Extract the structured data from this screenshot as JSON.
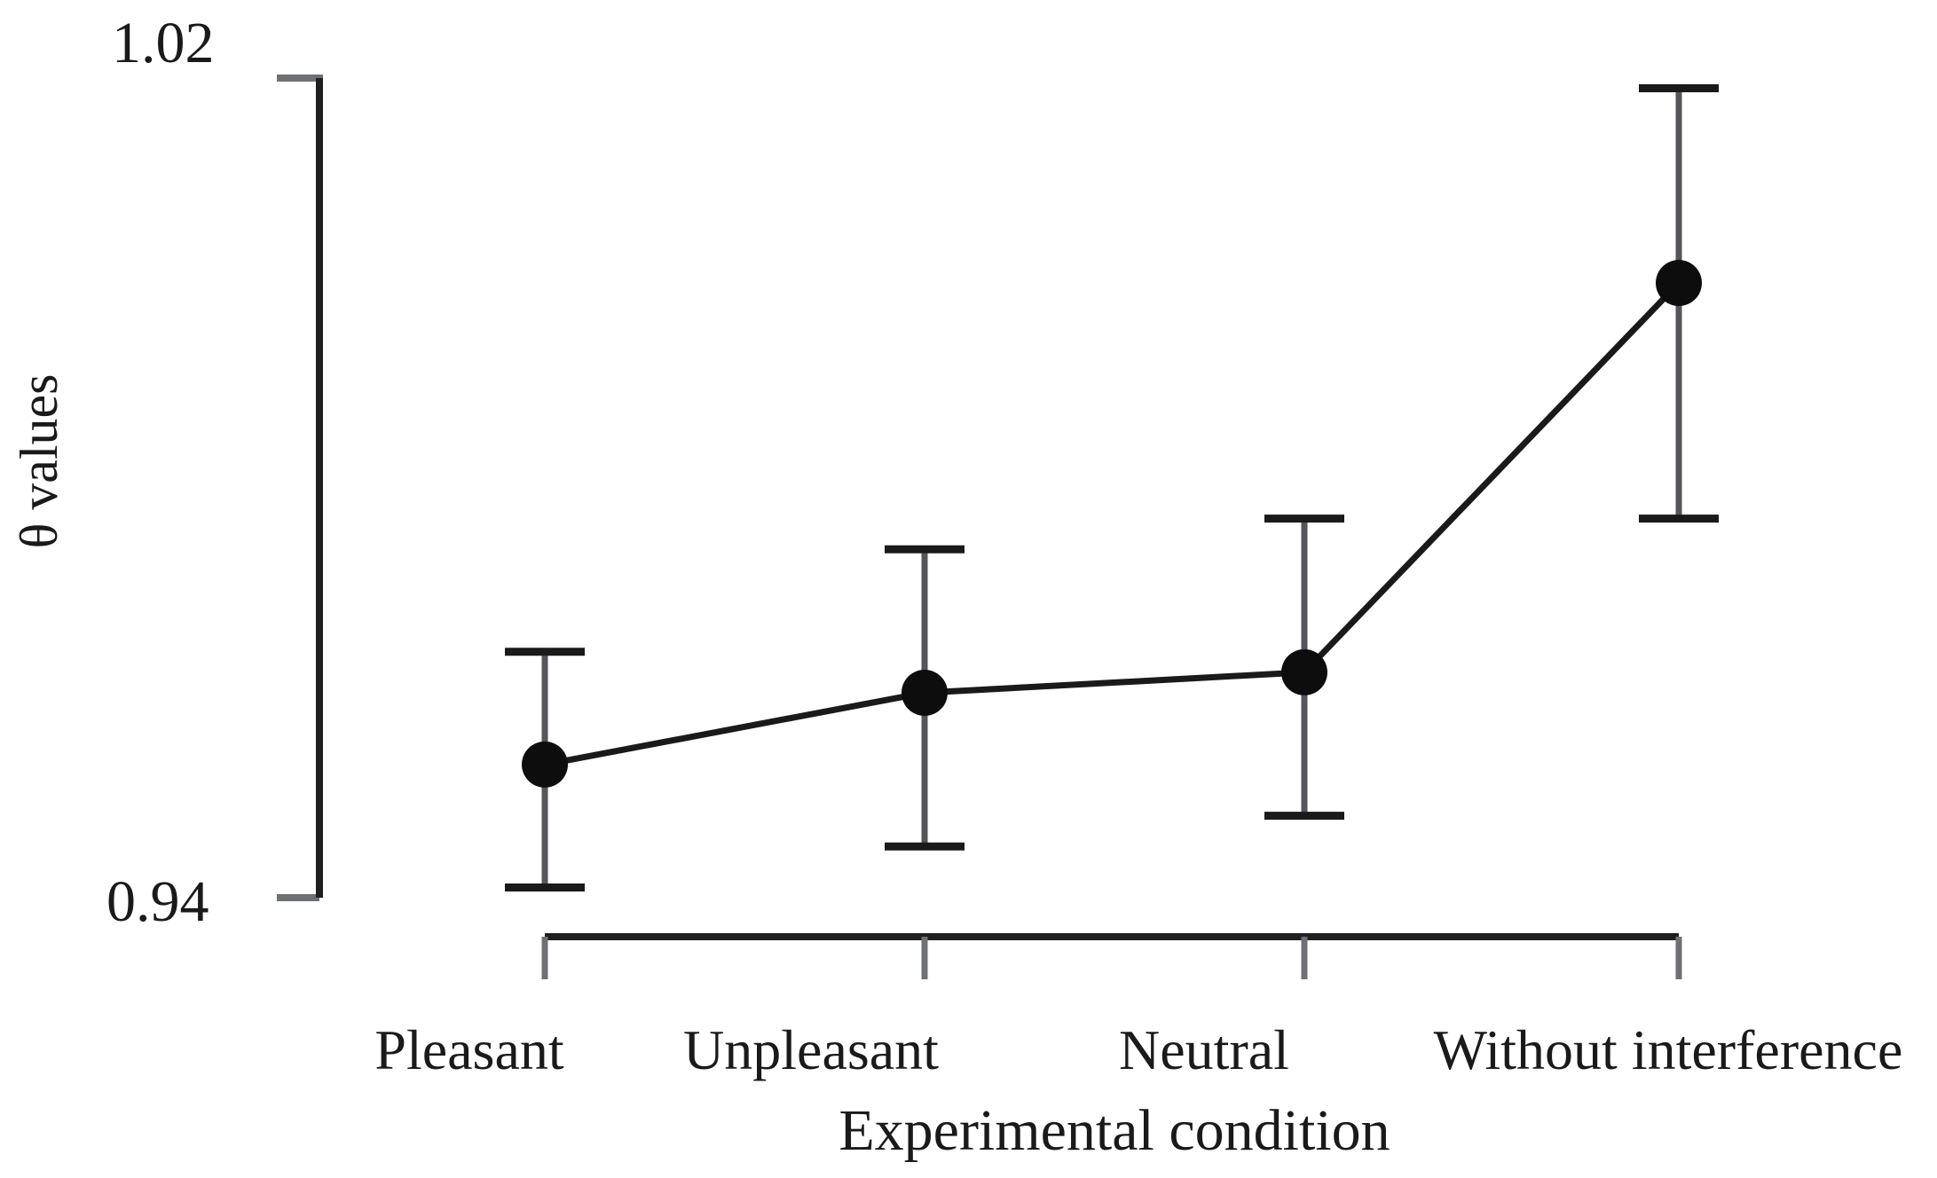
{
  "figure": {
    "background": "#ffffff",
    "y_axis": {
      "title": "θ values",
      "top_tick_label": "1.02",
      "bottom_tick_label": "0.94"
    },
    "x_axis": {
      "title": "Experimental condition"
    }
  },
  "chart_data": {
    "type": "line",
    "title": "",
    "xlabel": "Experimental condition",
    "ylabel": "θ values",
    "categories": [
      "Pleasant",
      "Unpleasant",
      "Neutral",
      "Without interference"
    ],
    "series": [
      {
        "name": "θ values",
        "values": [
          0.953,
          0.96,
          0.962,
          1.0
        ],
        "error_low": [
          0.941,
          0.945,
          0.948,
          0.977
        ],
        "error_high": [
          0.964,
          0.974,
          0.977,
          1.019
        ]
      }
    ],
    "ylim": [
      0.94,
      1.02
    ],
    "y_tick_values": [
      0.94,
      1.02
    ],
    "grid": false,
    "legend_position": "none",
    "marker": "filled-circle",
    "error_bars": true,
    "colors": {
      "line": "#1a1a1a",
      "marker": "#0d0d0d",
      "error_cap": "#1a1a1a",
      "error_stem": "#55565a",
      "axis": "#1f1f1f",
      "axis_tick": "#6f7073",
      "text": "#1a1a1a"
    }
  }
}
